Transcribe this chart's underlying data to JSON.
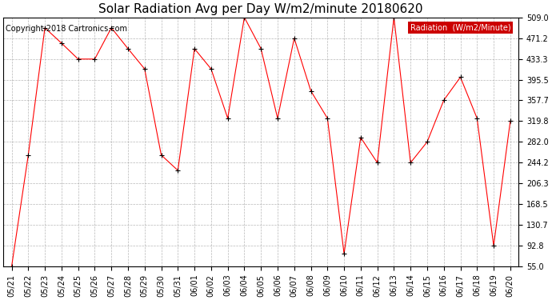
{
  "title": "Solar Radiation Avg per Day W/m2/minute 20180620",
  "copyright": "Copyright 2018 Cartronics.com",
  "legend_label": "Radiation  (W/m2/Minute)",
  "dates": [
    "05/21",
    "05/22",
    "05/23",
    "05/24",
    "05/25",
    "05/26",
    "05/27",
    "05/28",
    "05/29",
    "05/30",
    "05/31",
    "06/01",
    "06/02",
    "06/03",
    "06/04",
    "06/05",
    "06/06",
    "06/07",
    "06/08",
    "06/09",
    "06/10",
    "06/11",
    "06/12",
    "06/13",
    "06/14",
    "06/15",
    "06/16",
    "06/17",
    "06/18",
    "06/19",
    "06/20"
  ],
  "values": [
    55.0,
    258.0,
    490.0,
    462.0,
    433.0,
    433.0,
    490.0,
    452.0,
    415.0,
    258.0,
    230.0,
    452.0,
    415.0,
    325.0,
    509.0,
    452.0,
    325.0,
    471.0,
    375.0,
    325.0,
    78.0,
    290.0,
    244.0,
    509.0,
    244.0,
    282.0,
    358.0,
    400.0,
    325.0,
    92.8,
    320.0
  ],
  "ylim": [
    55.0,
    509.0
  ],
  "yticks": [
    55.0,
    92.8,
    130.7,
    168.5,
    206.3,
    244.2,
    282.0,
    319.8,
    357.7,
    395.5,
    433.3,
    471.2,
    509.0
  ],
  "ytick_labels": [
    "55.0",
    "92.8",
    "130.7",
    "168.5",
    "206.3",
    "244.2",
    "282.0",
    "319.8",
    "357.7",
    "395.5",
    "433.3",
    "471.2",
    "509.0"
  ],
  "line_color": "#ff0000",
  "marker": "+",
  "marker_color": "#000000",
  "bg_color": "#ffffff",
  "grid_color": "#999999",
  "title_fontsize": 11,
  "tick_fontsize": 7,
  "copyright_fontsize": 7,
  "legend_bg": "#cc0000",
  "legend_text_color": "#ffffff",
  "legend_fontsize": 7
}
